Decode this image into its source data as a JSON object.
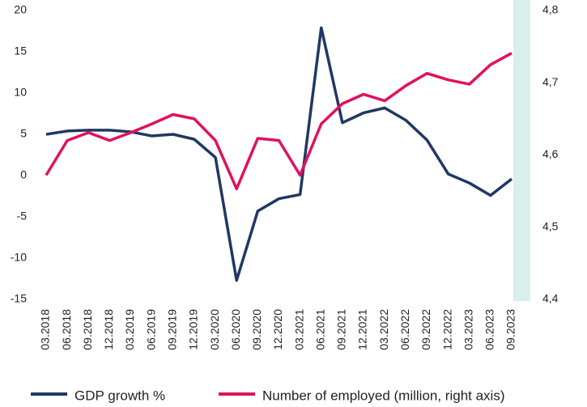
{
  "chart_data": {
    "type": "line",
    "categories": [
      "03.2018",
      "06.2018",
      "09.2018",
      "12.2018",
      "03.2019",
      "06.2019",
      "09.2019",
      "12.2019",
      "03.2020",
      "06.2020",
      "09.2020",
      "12.2020",
      "03.2021",
      "06.2021",
      "09.2021",
      "12.2021",
      "03.2022",
      "06.2022",
      "09.2022",
      "12.2022",
      "03.2023",
      "06.2023",
      "09.2023"
    ],
    "series": [
      {
        "name": "GDP growth %",
        "color": "#1f3864",
        "axis": "y",
        "values": [
          5.0,
          5.4,
          5.5,
          5.5,
          5.3,
          4.8,
          5.0,
          4.4,
          2.2,
          -12.7,
          -4.3,
          -2.8,
          -2.3,
          17.9,
          6.4,
          7.6,
          8.2,
          6.7,
          4.3,
          0.2,
          -0.9,
          -2.4,
          -0.4
        ]
      },
      {
        "name": "Number of employed (million, right axis)",
        "color": "#e0115f",
        "axis": "y2",
        "values": [
          4.572,
          4.62,
          4.631,
          4.62,
          4.631,
          4.643,
          4.656,
          4.65,
          4.62,
          4.553,
          4.623,
          4.62,
          4.572,
          4.643,
          4.671,
          4.684,
          4.675,
          4.696,
          4.713,
          4.704,
          4.698,
          4.725,
          4.741
        ]
      }
    ],
    "ylim": [
      -15,
      20
    ],
    "yticks": [
      -15,
      -10,
      -5,
      0,
      5,
      10,
      15,
      20
    ],
    "y2lim": [
      4.4,
      4.8
    ],
    "y2ticks": [
      {
        "value": 4.4,
        "label": "4,4"
      },
      {
        "value": 4.5,
        "label": "4,5"
      },
      {
        "value": 4.6,
        "label": "4,6"
      },
      {
        "value": 4.7,
        "label": "4,7"
      },
      {
        "value": 4.8,
        "label": "4,8"
      }
    ],
    "legend": "bottom"
  }
}
